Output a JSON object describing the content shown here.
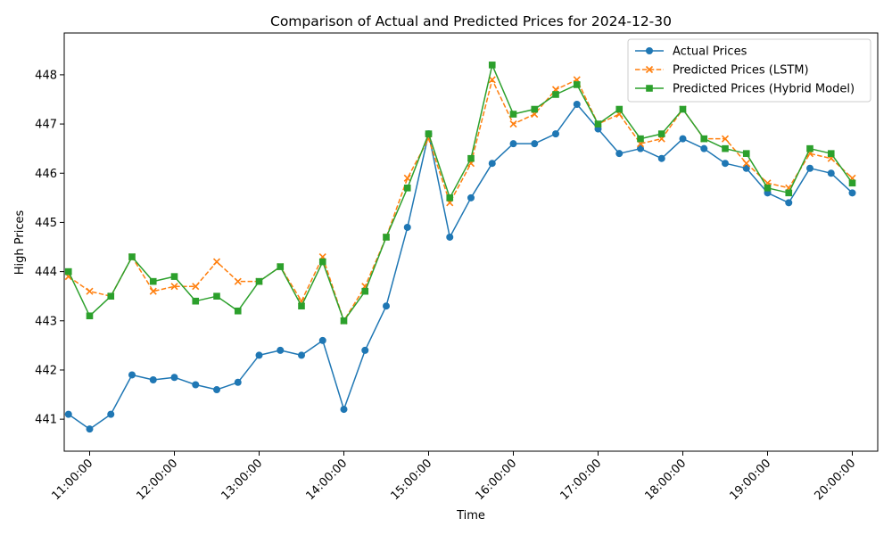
{
  "chart_data": {
    "type": "line",
    "title": "Comparison of Actual and Predicted Prices for 2024-12-30",
    "xlabel": "Time",
    "ylabel": "High Prices",
    "x_tick_labels": [
      "11:00:00",
      "12:00:00",
      "13:00:00",
      "14:00:00",
      "15:00:00",
      "16:00:00",
      "17:00:00",
      "18:00:00",
      "19:00:00",
      "20:00:00"
    ],
    "y_tick_labels": [
      "441",
      "442",
      "443",
      "444",
      "445",
      "446",
      "447",
      "448"
    ],
    "xlim": [
      "10:42:00",
      "20:18:00"
    ],
    "ylim": [
      440.35,
      448.85
    ],
    "grid": false,
    "legend_position": "top-right",
    "colors": {
      "actual": "#1f77b4",
      "lstm": "#ff7f0e",
      "hybrid": "#2ca02c"
    },
    "x": [
      "10:45:00",
      "11:00:00",
      "11:15:00",
      "11:30:00",
      "11:45:00",
      "12:00:00",
      "12:15:00",
      "12:30:00",
      "12:45:00",
      "13:00:00",
      "13:15:00",
      "13:30:00",
      "13:45:00",
      "14:00:00",
      "14:15:00",
      "14:30:00",
      "14:45:00",
      "15:00:00",
      "15:15:00",
      "15:30:00",
      "15:45:00",
      "16:00:00",
      "16:15:00",
      "16:30:00",
      "16:45:00",
      "17:00:00",
      "17:15:00",
      "17:30:00",
      "17:45:00",
      "18:00:00",
      "18:15:00",
      "18:30:00",
      "18:45:00",
      "19:00:00",
      "19:15:00",
      "19:30:00",
      "19:45:00",
      "20:00:00"
    ],
    "series": [
      {
        "name": "Actual Prices",
        "marker": "circle",
        "line": "solid",
        "values": [
          441.1,
          440.8,
          441.1,
          441.9,
          441.8,
          441.85,
          441.7,
          441.6,
          441.75,
          442.3,
          442.4,
          442.3,
          442.6,
          441.2,
          442.4,
          443.3,
          444.9,
          446.8,
          444.7,
          445.5,
          446.2,
          446.6,
          446.6,
          446.8,
          447.4,
          446.9,
          446.4,
          446.5,
          446.3,
          446.7,
          446.5,
          446.2,
          446.1,
          445.6,
          445.4,
          446.1,
          446.0,
          445.6
        ]
      },
      {
        "name": "Predicted Prices (LSTM)",
        "marker": "x",
        "line": "dashed",
        "values": [
          443.9,
          443.6,
          443.5,
          444.3,
          443.6,
          443.7,
          443.7,
          444.2,
          443.8,
          443.8,
          444.1,
          443.4,
          444.3,
          443.0,
          443.7,
          444.7,
          445.9,
          446.7,
          445.4,
          446.2,
          447.9,
          447.0,
          447.2,
          447.7,
          447.9,
          447.0,
          447.2,
          446.6,
          446.7,
          447.3,
          446.7,
          446.7,
          446.2,
          445.8,
          445.7,
          446.4,
          446.3,
          445.9
        ]
      },
      {
        "name": "Predicted Prices (Hybrid Model)",
        "marker": "square",
        "line": "solid",
        "values": [
          444.0,
          443.1,
          443.5,
          444.3,
          443.8,
          443.9,
          443.4,
          443.5,
          443.2,
          443.8,
          444.1,
          443.3,
          444.2,
          443.0,
          443.6,
          444.7,
          445.7,
          446.8,
          445.5,
          446.3,
          448.2,
          447.2,
          447.3,
          447.6,
          447.8,
          447.0,
          447.3,
          446.7,
          446.8,
          447.3,
          446.7,
          446.5,
          446.4,
          445.7,
          445.6,
          446.5,
          446.4,
          445.8
        ]
      }
    ]
  }
}
